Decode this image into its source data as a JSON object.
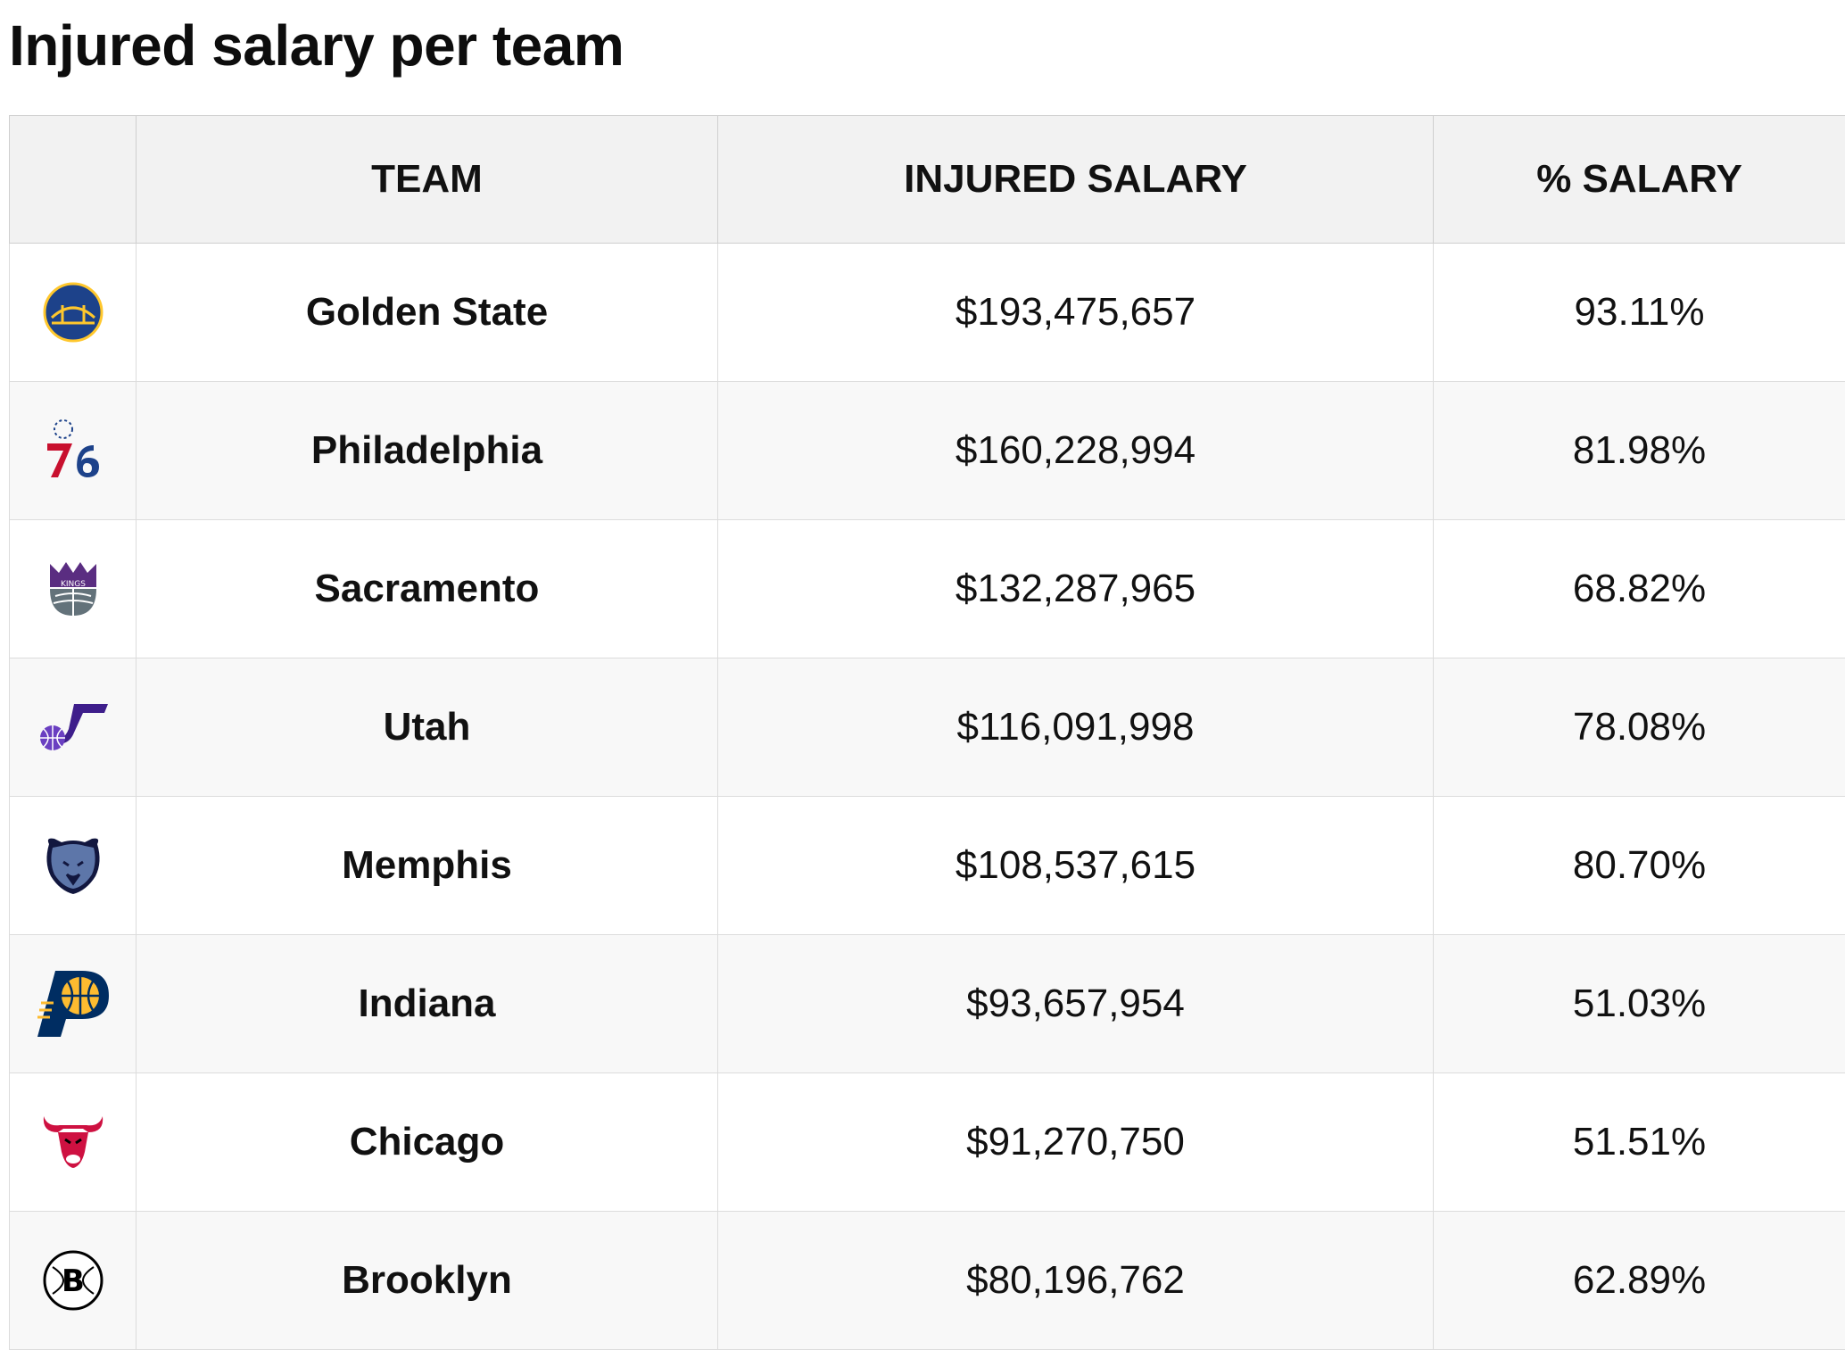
{
  "page_title": "Injured salary per team",
  "table": {
    "headers": [
      "",
      "TEAM",
      "INJURED SALARY",
      "% SALARY"
    ],
    "rows": [
      {
        "logo": "warriors-logo-icon",
        "team": "Golden State",
        "injured_salary": "$193,475,657",
        "pct_salary": "93.11%"
      },
      {
        "logo": "76ers-logo-icon",
        "team": "Philadelphia",
        "injured_salary": "$160,228,994",
        "pct_salary": "81.98%"
      },
      {
        "logo": "kings-logo-icon",
        "team": "Sacramento",
        "injured_salary": "$132,287,965",
        "pct_salary": "68.82%"
      },
      {
        "logo": "jazz-logo-icon",
        "team": "Utah",
        "injured_salary": "$116,091,998",
        "pct_salary": "78.08%"
      },
      {
        "logo": "grizzlies-logo-icon",
        "team": "Memphis",
        "injured_salary": "$108,537,615",
        "pct_salary": "80.70%"
      },
      {
        "logo": "pacers-logo-icon",
        "team": "Indiana",
        "injured_salary": "$93,657,954",
        "pct_salary": "51.03%"
      },
      {
        "logo": "bulls-logo-icon",
        "team": "Chicago",
        "injured_salary": "$91,270,750",
        "pct_salary": "51.51%"
      },
      {
        "logo": "nets-logo-icon",
        "team": "Brooklyn",
        "injured_salary": "$80,196,762",
        "pct_salary": "62.89%"
      }
    ]
  },
  "colors": {
    "header_bg": "#f2f2f2",
    "row_alt_bg": "#f8f8f8",
    "border": "#dcdcdc"
  }
}
